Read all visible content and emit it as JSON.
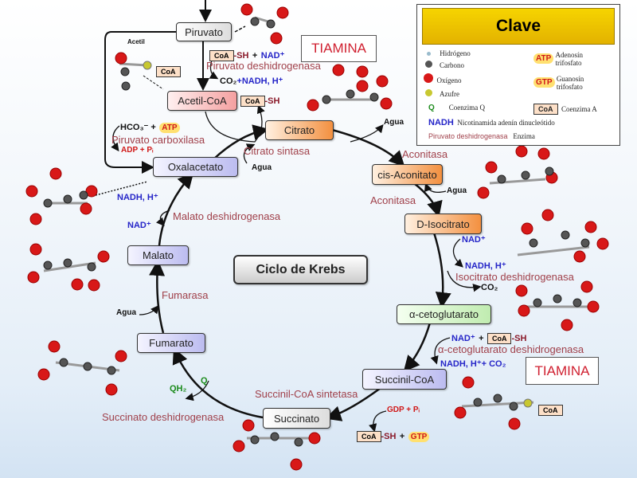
{
  "title": "Ciclo de Krebs",
  "metabolites": {
    "piruvato": "Piruvato",
    "acetilcoa": "Acetil-CoA",
    "citrato": "Citrato",
    "cisaconitato": "cis-Aconitato",
    "isocitrato": "D-Isocitrato",
    "cetoglutarato": "α-cetoglutarato",
    "succinilcoa": "Succinil-CoA",
    "succinato": "Succinato",
    "fumarato": "Fumarato",
    "malato": "Malato",
    "oxalacetato": "Oxalacetato"
  },
  "enzymes": {
    "pdh": "Piruvato deshidrogenasa",
    "pc": "Piruvato carboxilasa",
    "cs": "Citrato sintasa",
    "acon1": "Aconitasa",
    "acon2": "Aconitasa",
    "idh": "Isocitrato deshidrogenasa",
    "akgdh": "α-cetoglutarato deshidrogenasa",
    "scs": "Succinil-CoA sintetasa",
    "sdh": "Succinato deshidrogenasa",
    "fum": "Fumarasa",
    "mdh": "Malato deshidrogenasa"
  },
  "tiamina": "TIAMINA",
  "labels": {
    "acetil": "Acetil",
    "coa": "CoA",
    "sh": "-SH",
    "plus": "+",
    "nadp": "NAD⁺",
    "co2": "CO₂",
    "co2nadh": "+NADH, H⁺",
    "nadh": "NADH, H⁺",
    "hco3": "HCO₃⁻ +",
    "atp": "ATP",
    "gtp": "GTP",
    "adp": "ADP + Pᵢ",
    "gdp": "GDP + Pᵢ",
    "agua": "Agua",
    "qh2": "QH₂",
    "q": "Q",
    "nadhco2": "NADH, H⁺+ CO₂",
    "s": "S",
    "c": "C",
    "o": "O"
  },
  "key": {
    "title": "Clave",
    "hidrogeno": "Hidrógeno",
    "carbono": "Carbono",
    "oxigeno": "Oxígeno",
    "azufre": "Azufre",
    "q": "Q",
    "coenzimaq": "Coenzima Q",
    "nadh": "NADH",
    "nadh_desc": "Nicotinamida adenín dinucleótido",
    "enzyme_example": "Piruvato deshidrogenasa",
    "enzima": "Enzima",
    "atp_desc": "Adenosín trifosfato",
    "gtp_desc": "Guanosín trifosfato",
    "coa_desc": "Coenzima A"
  },
  "colors": {
    "enzyme": "#a0404a",
    "cofactor": "#2525c8",
    "energy": "#d01818",
    "key_header": "#f0c800"
  }
}
